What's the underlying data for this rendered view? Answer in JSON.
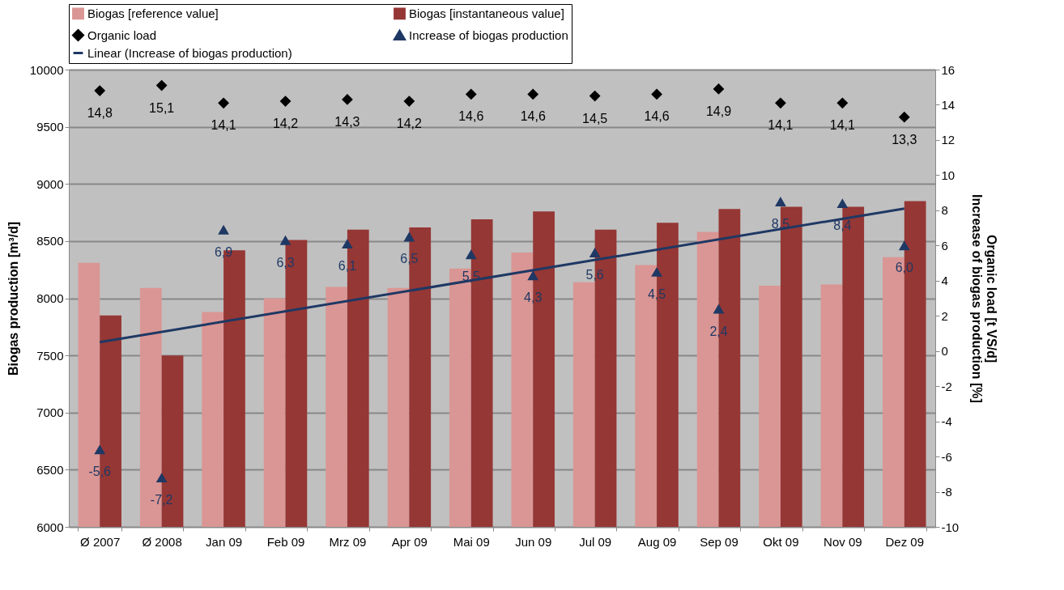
{
  "chart_data": {
    "type": "bar",
    "ylabel": "Biogas production  [m³/d]",
    "y2label": "Organic load [t VS/d]\nIncrease of biogas production  [%]",
    "categories": [
      "Ø 2007",
      "Ø 2008",
      "Jan 09",
      "Feb 09",
      "Mrz 09",
      "Apr 09",
      "Mai 09",
      "Jun 09",
      "Jul 09",
      "Aug 09",
      "Sep 09",
      "Okt 09",
      "Nov 09",
      "Dez 09"
    ],
    "series": [
      {
        "name": "Biogas [reference value]",
        "color": "#da9694",
        "values": [
          8310,
          8090,
          7880,
          8000,
          8100,
          8090,
          8260,
          8400,
          8140,
          8290,
          8580,
          8110,
          8120,
          8360
        ]
      },
      {
        "name": "Biogas [instantaneous value]",
        "color": "#953735",
        "values": [
          7850,
          7500,
          8420,
          8510,
          8600,
          8620,
          8690,
          8760,
          8600,
          8660,
          8780,
          8800,
          8800,
          8850
        ]
      },
      {
        "name": "Organic load",
        "type": "scatter",
        "axis": "y2",
        "marker": "diamond",
        "color": "#000000",
        "values": [
          14.8,
          15.1,
          14.1,
          14.2,
          14.3,
          14.2,
          14.6,
          14.6,
          14.5,
          14.6,
          14.9,
          14.1,
          14.1,
          13.3
        ],
        "value_labels": [
          "14,8",
          "15,1",
          "14,1",
          "14,2",
          "14,3",
          "14,2",
          "14,6",
          "14,6",
          "14,5",
          "14,6",
          "14,9",
          "14,1",
          "14,1",
          "13,3"
        ]
      },
      {
        "name": "Increase of biogas production",
        "type": "scatter",
        "axis": "y2",
        "marker": "triangle",
        "color": "#1f3864",
        "values": [
          -5.6,
          -7.2,
          6.9,
          6.3,
          6.1,
          6.5,
          5.5,
          4.3,
          5.6,
          4.5,
          2.4,
          8.5,
          8.4,
          6.0
        ],
        "value_labels": [
          "-5,6",
          "-7,2",
          "6,9",
          "6,3",
          "6,1",
          "6,5",
          "5,5",
          "4,3",
          "5,6",
          "4,5",
          "2,4",
          "8,5",
          "8,4",
          "6,0"
        ]
      },
      {
        "name": "Linear (Increase of biogas production)",
        "type": "line",
        "axis": "y2",
        "color": "#1f3864",
        "x": [
          "Ø 2007",
          "Dez 09"
        ],
        "values": [
          0.5,
          8.1
        ]
      }
    ],
    "ylim": [
      6000,
      10000
    ],
    "yticks": [
      6000,
      6500,
      7000,
      7500,
      8000,
      8500,
      9000,
      9500,
      10000
    ],
    "y2lim": [
      -10,
      16
    ],
    "y2ticks": [
      -10,
      -8,
      -6,
      -4,
      -2,
      0,
      2,
      4,
      6,
      8,
      10,
      12,
      14,
      16
    ],
    "grid": "y",
    "legend": "top"
  }
}
